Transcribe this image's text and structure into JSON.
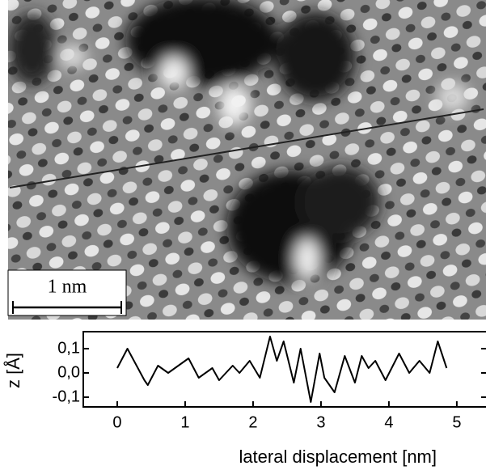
{
  "image": {
    "scale_bar": "1 nm"
  },
  "chart_data": {
    "type": "line",
    "x_label": "lateral displacement [nm]",
    "y_label": "z [Å]",
    "x": [
      0,
      0.15,
      0.4,
      0.45,
      0.6,
      0.75,
      0.9,
      1.05,
      1.2,
      1.4,
      1.5,
      1.7,
      1.8,
      1.95,
      2.1,
      2.25,
      2.35,
      2.45,
      2.6,
      2.7,
      2.85,
      2.98,
      3.05,
      3.2,
      3.35,
      3.5,
      3.6,
      3.7,
      3.8,
      3.95,
      4.15,
      4.3,
      4.45,
      4.6,
      4.72,
      4.85
    ],
    "series": [
      {
        "color": "#000000",
        "values": [
          0.02,
          0.1,
          -0.03,
          -0.05,
          0.03,
          0.0,
          0.03,
          0.06,
          -0.02,
          0.02,
          -0.03,
          0.03,
          0.0,
          0.05,
          -0.02,
          0.15,
          0.05,
          0.13,
          -0.04,
          0.1,
          -0.12,
          0.08,
          -0.02,
          -0.08,
          0.07,
          -0.04,
          0.07,
          0.02,
          0.05,
          -0.03,
          0.08,
          0.0,
          0.05,
          0.0,
          0.13,
          0.02
        ]
      }
    ],
    "xlim": [
      -0.5,
      5.43
    ],
    "ylim": [
      -0.14,
      0.17
    ],
    "xticks": [
      0,
      1,
      2,
      3,
      4,
      5
    ],
    "yticks": [
      {
        "value": 0.1,
        "label": "0,1"
      },
      {
        "value": 0,
        "label": "0,0"
      },
      {
        "value": -0.1,
        "label": "-0,1"
      }
    ]
  }
}
